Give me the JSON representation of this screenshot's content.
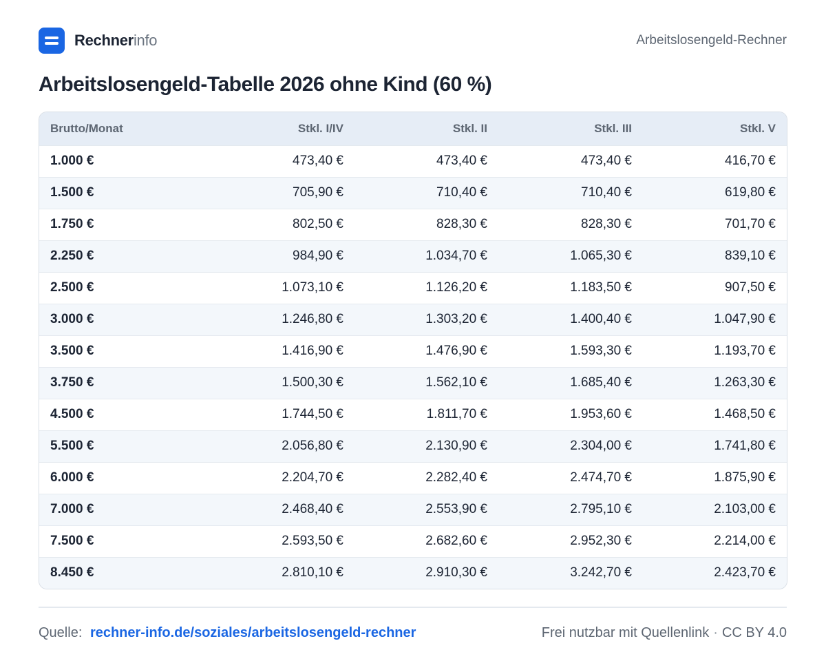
{
  "brand": {
    "name_strong": "Rechner",
    "name_light": "info"
  },
  "header": {
    "right_text": "Arbeitslosengeld-Rechner"
  },
  "title": "Arbeitslosengeld-Tabelle  2026 ohne Kind (60 %)",
  "table": {
    "columns": [
      "Brutto/Monat",
      "Stkl. I/IV",
      "Stkl. II",
      "Stkl. III",
      "Stkl. V"
    ],
    "rows": [
      [
        "1.000 €",
        "473,40 €",
        "473,40 €",
        "473,40 €",
        "416,70 €"
      ],
      [
        "1.500 €",
        "705,90 €",
        "710,40 €",
        "710,40 €",
        "619,80 €"
      ],
      [
        "1.750 €",
        "802,50 €",
        "828,30 €",
        "828,30 €",
        "701,70 €"
      ],
      [
        "2.250 €",
        "984,90 €",
        "1.034,70 €",
        "1.065,30 €",
        "839,10 €"
      ],
      [
        "2.500 €",
        "1.073,10 €",
        "1.126,20 €",
        "1.183,50 €",
        "907,50 €"
      ],
      [
        "3.000 €",
        "1.246,80 €",
        "1.303,20 €",
        "1.400,40 €",
        "1.047,90 €"
      ],
      [
        "3.500 €",
        "1.416,90 €",
        "1.476,90 €",
        "1.593,30 €",
        "1.193,70 €"
      ],
      [
        "3.750 €",
        "1.500,30 €",
        "1.562,10 €",
        "1.685,40 €",
        "1.263,30 €"
      ],
      [
        "4.500 €",
        "1.744,50 €",
        "1.811,70 €",
        "1.953,60 €",
        "1.468,50 €"
      ],
      [
        "5.500 €",
        "2.056,80 €",
        "2.130,90 €",
        "2.304,00 €",
        "1.741,80 €"
      ],
      [
        "6.000 €",
        "2.204,70 €",
        "2.282,40 €",
        "2.474,70 €",
        "1.875,90 €"
      ],
      [
        "7.000 €",
        "2.468,40 €",
        "2.553,90 €",
        "2.795,10 €",
        "2.103,00 €"
      ],
      [
        "7.500 €",
        "2.593,50 €",
        "2.682,60 €",
        "2.952,30 €",
        "2.214,00 €"
      ],
      [
        "8.450 €",
        "2.810,10 €",
        "2.910,30 €",
        "3.242,70 €",
        "2.423,70 €"
      ]
    ]
  },
  "footer": {
    "source_label": "Quelle:",
    "source_link": "rechner-info.de/soziales/arbeitslosengeld-rechner",
    "license_text": "Frei nutzbar mit Quellenlink",
    "separator": "·",
    "license": "CC BY 4.0"
  },
  "colors": {
    "accent": "#1a66e3",
    "header_bg": "#e6edf6",
    "stripe_bg": "#f3f7fb",
    "text": "#1c2433",
    "muted": "#5d6672"
  },
  "icons": {
    "logo": "rechnerinfo-logo-icon"
  }
}
